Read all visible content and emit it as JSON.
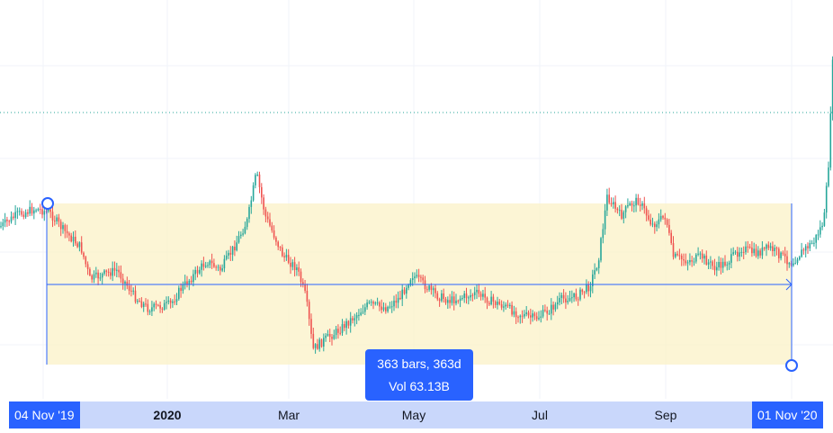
{
  "colors": {
    "up": "#26a69a",
    "down": "#ef5350",
    "range_fill": "#fbf1c7",
    "range_stroke": "#2962ff",
    "grid": "#f0f3fa",
    "dotted_line": "#26a69a"
  },
  "x_axis": {
    "labels": [
      {
        "text": "2020",
        "bold": true
      },
      {
        "text": "Mar",
        "bold": false
      },
      {
        "text": "May",
        "bold": false
      },
      {
        "text": "Jul",
        "bold": false
      },
      {
        "text": "Sep",
        "bold": false
      }
    ]
  },
  "range": {
    "start_date": "04 Nov '19",
    "end_date": "01 Nov '20",
    "bars_text": "363 bars, 363d",
    "volume_text": "Vol 63.13B"
  },
  "chart_data": {
    "type": "candlestick",
    "title": "",
    "x_range": [
      "2019-10",
      "2020-11"
    ],
    "grid": true,
    "series": [
      {
        "name": "",
        "style": "candles",
        "trend": "pre-range ~level 0.88 above range mid; dips to 0.42 in Mar; recovers to ~0.90 in Aug; ends ~0.62 then surges"
      }
    ],
    "annotations": [
      {
        "type": "date-range",
        "from": "04 Nov '19",
        "to": "01 Nov '20",
        "label": "363 bars, 363d",
        "sublabel": "Vol 63.13B"
      },
      {
        "type": "horizontal-dotted-line"
      }
    ],
    "x_tick_labels": [
      "2020",
      "Mar",
      "May",
      "Jul",
      "Sep"
    ]
  }
}
